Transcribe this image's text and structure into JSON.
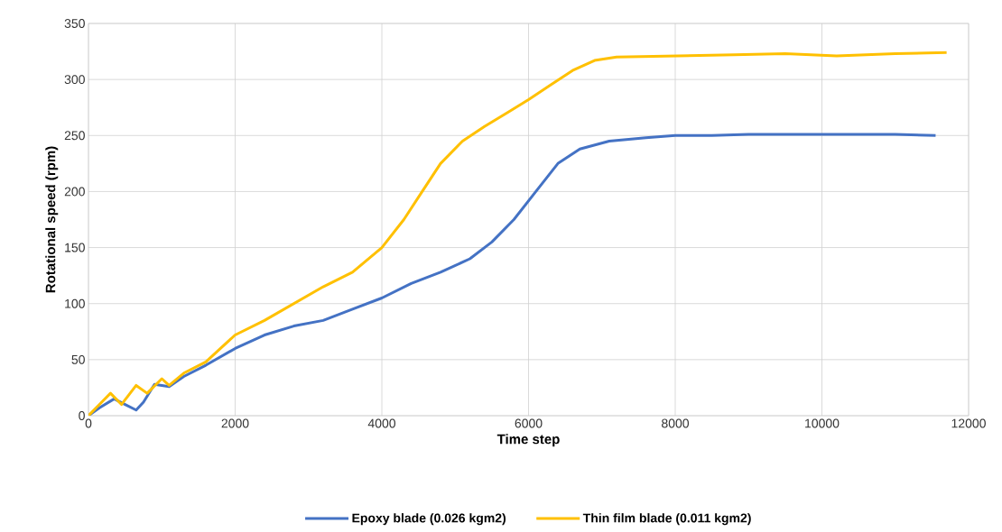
{
  "chart_data": {
    "type": "line",
    "xlabel": "Time step",
    "ylabel": "Rotational speed (rpm)",
    "xlim": [
      0,
      12000
    ],
    "xticks": [
      0,
      2000,
      4000,
      6000,
      8000,
      10000,
      12000
    ],
    "ylim": [
      0,
      350
    ],
    "yticks": [
      0,
      50,
      100,
      150,
      200,
      250,
      300,
      350
    ],
    "grid": true,
    "legend": "bottom",
    "marker": "none",
    "line_style": "solid",
    "series": [
      {
        "name": "Epoxy blade (0.026 kgm2)",
        "color": "#4472c4",
        "x": [
          0,
          150,
          350,
          500,
          650,
          750,
          900,
          1100,
          1300,
          1600,
          2000,
          2400,
          2800,
          3200,
          3600,
          4000,
          4400,
          4800,
          5200,
          5500,
          5800,
          6100,
          6400,
          6700,
          7100,
          7600,
          8000,
          8500,
          9000,
          10000,
          11000,
          11550
        ],
        "values": [
          0,
          7,
          15,
          10,
          5,
          12,
          28,
          26,
          35,
          45,
          60,
          72,
          80,
          85,
          95,
          105,
          118,
          128,
          140,
          155,
          175,
          200,
          225,
          238,
          245,
          248,
          250,
          250,
          251,
          251,
          251,
          250
        ]
      },
      {
        "name": "Thin film blade (0.011 kgm2)",
        "color": "#ffc000",
        "x": [
          0,
          150,
          300,
          450,
          650,
          800,
          1000,
          1100,
          1300,
          1600,
          1800,
          2000,
          2400,
          2800,
          3200,
          3600,
          4000,
          4300,
          4550,
          4800,
          5100,
          5400,
          5700,
          6000,
          6300,
          6600,
          6900,
          7200,
          8000,
          8800,
          9500,
          10200,
          11000,
          11700
        ],
        "values": [
          0,
          10,
          20,
          10,
          27,
          20,
          33,
          27,
          38,
          48,
          60,
          72,
          85,
          100,
          115,
          128,
          150,
          175,
          200,
          225,
          245,
          258,
          270,
          282,
          295,
          308,
          317,
          320,
          321,
          322,
          323,
          321,
          323,
          324
        ]
      }
    ]
  }
}
